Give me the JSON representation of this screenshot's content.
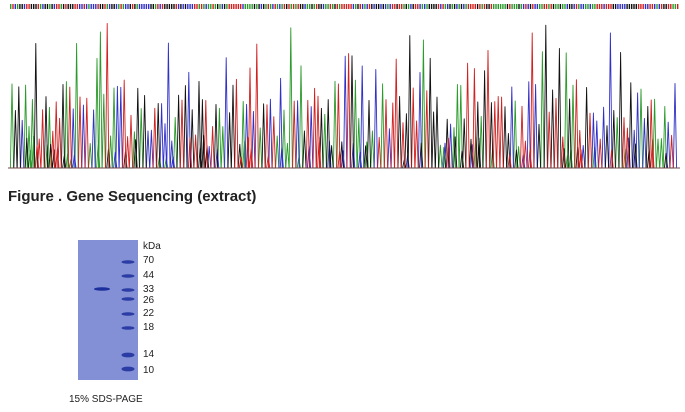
{
  "figure": {
    "caption": "Figure . Gene Sequencing (extract)",
    "colors": {
      "A": "#2a9a2a",
      "C": "#3030c8",
      "G": "#111111",
      "T": "#d02020"
    }
  },
  "gel": {
    "unit_label": "kDa",
    "markers": [
      "70",
      "44",
      "33",
      "26",
      "22",
      "18",
      "14",
      "10"
    ],
    "caption": "15% SDS-PAGE",
    "colors": {
      "background": "#8a96d8",
      "band": "#1c2f9c"
    }
  }
}
